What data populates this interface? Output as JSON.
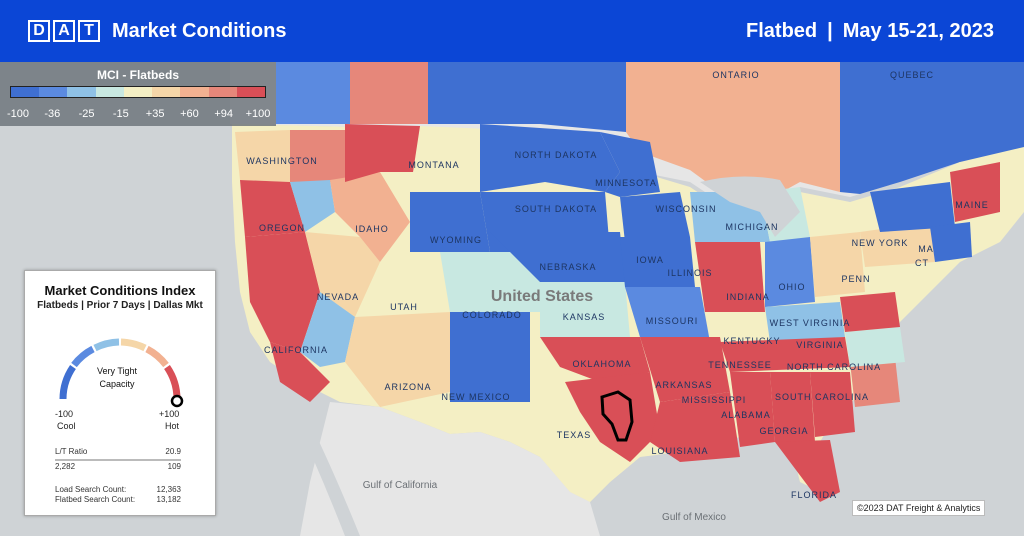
{
  "header": {
    "logo_letters": [
      "D",
      "A",
      "T"
    ],
    "title": "Market Conditions",
    "equipment": "Flatbed",
    "separator": "|",
    "date_range": "May 15-21, 2023",
    "bg_color": "#0b46d6"
  },
  "legend": {
    "title": "MCI - Flatbeds",
    "colors": [
      "#3f6fd1",
      "#5b8ae0",
      "#8fc1e6",
      "#c8e8e1",
      "#f4efc4",
      "#f5d6a8",
      "#f2b191",
      "#e6877a",
      "#d94f57"
    ],
    "ticks": [
      "-100",
      "-36",
      "-25",
      "-15",
      "+35",
      "+60",
      "+94",
      "+100"
    ]
  },
  "mci_panel": {
    "title": "Market Conditions Index",
    "subtitle": "Flatbeds | Prior 7 Days | Dallas Mkt",
    "gauge_label_line1": "Very Tight",
    "gauge_label_line2": "Capacity",
    "min_value": "-100",
    "min_label": "Cool",
    "max_value": "+100",
    "max_label": "Hot",
    "gauge_value": 100,
    "lt_ratio_label": "L/T Ratio",
    "lt_ratio_value": "20.9",
    "loads": "2,282",
    "trucks": "109",
    "load_search_label": "Load Search Count:",
    "load_search_value": "12,363",
    "flatbed_search_label": "Flatbed Search Count:",
    "flatbed_search_value": "13,182"
  },
  "map_labels": {
    "country": "United States",
    "states": [
      "WASHINGTON",
      "OREGON",
      "CALIFORNIA",
      "NEVADA",
      "IDAHO",
      "MONTANA",
      "WYOMING",
      "UTAH",
      "ARIZONA",
      "COLORADO",
      "NEW MEXICO",
      "NORTH DAKOTA",
      "SOUTH DAKOTA",
      "NEBRASKA",
      "KANSAS",
      "OKLAHOMA",
      "TEXAS",
      "MINNESOTA",
      "IOWA",
      "MISSOURI",
      "ARKANSAS",
      "LOUISIANA",
      "WISCONSIN",
      "ILLINOIS",
      "MICHIGAN",
      "INDIANA",
      "OHIO",
      "KENTUCKY",
      "TENNESSEE",
      "MISSISSIPPI",
      "ALABAMA",
      "GEORGIA",
      "FLORIDA",
      "SOUTH CAROLINA",
      "NORTH CAROLINA",
      "VIRGINIA",
      "WEST VIRGINIA",
      "PENN",
      "NEW YORK",
      "MAINE",
      "ONTARIO",
      "QUEBEC",
      "MA",
      "CT"
    ],
    "water": [
      "Gulf of California",
      "Gulf of Mexico"
    ]
  },
  "copyright": "©2023 DAT Freight & Analytics"
}
